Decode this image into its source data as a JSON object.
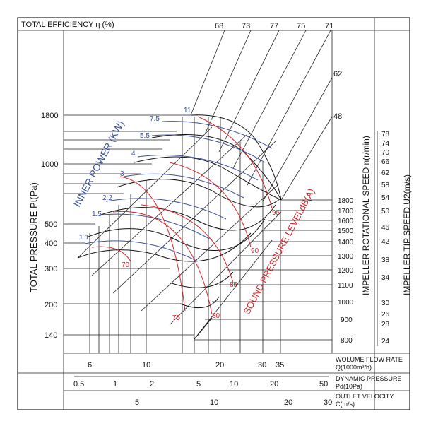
{
  "chart_data": {
    "type": "line",
    "title": "TOTAL EFFICIENCY η (%)",
    "efficiency_labels": [
      "68",
      "73",
      "77",
      "75",
      "71"
    ],
    "speed_side_labels": [
      "62",
      "48"
    ],
    "ylabel": "TOTAL PRESSURE Pt(Pa)",
    "yticks": [
      "1800",
      "1000",
      "500",
      "400",
      "300",
      "200",
      "140"
    ],
    "inner_power": {
      "title": "INNER POWER (KW)",
      "labels": [
        "11",
        "7.5",
        "5.5",
        "4",
        "3",
        "2.2",
        "1.5",
        "1.1"
      ]
    },
    "sound": {
      "title": "SOUND PRESSURE LEVELdB(A)",
      "labels": [
        "95",
        "90",
        "85",
        "80",
        "75",
        "70"
      ]
    },
    "speed": {
      "title": "IMPELLER ROTATIONAL SPEED n(r/min)",
      "ticks": [
        "1800",
        "1700",
        "1600",
        "1500",
        "1400",
        "1300",
        "1200",
        "1100",
        "1000",
        "900",
        "800"
      ]
    },
    "tip_speed": {
      "title": "IMPELLER TIP SPEED U2(m/s)",
      "ticks": [
        "78",
        "74",
        "70",
        "66",
        "62",
        "58",
        "54",
        "50",
        "46",
        "42",
        "38",
        "34",
        "30",
        "26",
        "28",
        "24"
      ]
    },
    "flow": {
      "title": "WOLUME FLOW RATE",
      "unit": "Q(1000m³/h)",
      "ticks": [
        "6",
        "10",
        "20",
        "30",
        "35"
      ]
    },
    "dynamic_pressure": {
      "title": "DYNAMIC PRESSURE",
      "unit": "Pd(10Pa)",
      "ticks": [
        "0.5",
        "1",
        "2",
        "5",
        "10",
        "20",
        "50"
      ]
    },
    "outlet_velocity": {
      "title": "OUTLET VELOCITY",
      "unit": "C(m/s)",
      "ticks": [
        "5",
        "10",
        "20",
        "30"
      ]
    },
    "colors": {
      "power": "#3c4f9a",
      "sound": "#d8262c",
      "lines": "#111111"
    }
  }
}
